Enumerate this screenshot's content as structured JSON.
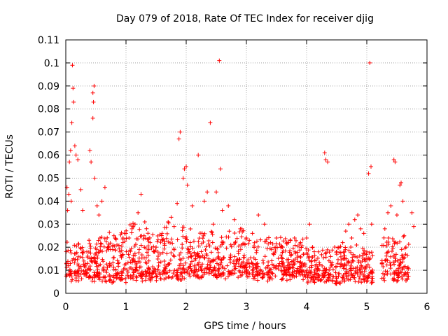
{
  "chart_data": {
    "type": "scatter",
    "title": "Day 079 of 2018, Rate Of TEC Index for receiver djig",
    "xlabel": "GPS time / hours",
    "ylabel": "ROTI / TECUs",
    "xlim": [
      0,
      6
    ],
    "ylim": [
      0,
      0.11
    ],
    "x_ticks": [
      0,
      1,
      2,
      3,
      4,
      5,
      6
    ],
    "x_tick_labels": [
      "0",
      "1",
      "2",
      "3",
      "4",
      "5",
      "6"
    ],
    "y_ticks": [
      0,
      0.01,
      0.02,
      0.03,
      0.04,
      0.05,
      0.06,
      0.07,
      0.08,
      0.09,
      0.1,
      0.11
    ],
    "y_tick_labels": [
      "0",
      "0.01",
      "0.02",
      "0.03",
      "0.04",
      "0.05",
      "0.06",
      "0.07",
      "0.08",
      "0.09",
      "0.1",
      "0.11"
    ],
    "grid": true,
    "marker": "+",
    "marker_color": "#ff0000",
    "series": [
      {
        "name": "ROTI",
        "points": [
          [
            0.02,
            0.046
          ],
          [
            0.03,
            0.036
          ],
          [
            0.05,
            0.043
          ],
          [
            0.06,
            0.057
          ],
          [
            0.08,
            0.062
          ],
          [
            0.09,
            0.04
          ],
          [
            0.1,
            0.074
          ],
          [
            0.11,
            0.099
          ],
          [
            0.12,
            0.089
          ],
          [
            0.13,
            0.083
          ],
          [
            0.15,
            0.064
          ],
          [
            0.17,
            0.06
          ],
          [
            0.2,
            0.058
          ],
          [
            0.25,
            0.045
          ],
          [
            0.28,
            0.036
          ],
          [
            0.4,
            0.062
          ],
          [
            0.42,
            0.057
          ],
          [
            0.45,
            0.087
          ],
          [
            0.46,
            0.083
          ],
          [
            0.47,
            0.09
          ],
          [
            0.45,
            0.076
          ],
          [
            0.48,
            0.05
          ],
          [
            0.52,
            0.038
          ],
          [
            0.55,
            0.034
          ],
          [
            0.6,
            0.04
          ],
          [
            0.65,
            0.046
          ],
          [
            0.3,
            0.014
          ],
          [
            0.35,
            0.018
          ],
          [
            0.55,
            0.012
          ],
          [
            0.7,
            0.02
          ],
          [
            0.8,
            0.025
          ],
          [
            0.85,
            0.021
          ],
          [
            0.9,
            0.018
          ],
          [
            0.95,
            0.022
          ],
          [
            1.0,
            0.026
          ],
          [
            1.05,
            0.024
          ],
          [
            1.1,
            0.028
          ],
          [
            1.15,
            0.03
          ],
          [
            1.2,
            0.035
          ],
          [
            1.25,
            0.043
          ],
          [
            1.3,
            0.025
          ],
          [
            1.4,
            0.022
          ],
          [
            1.5,
            0.02
          ],
          [
            1.6,
            0.026
          ],
          [
            1.7,
            0.031
          ],
          [
            1.75,
            0.033
          ],
          [
            1.8,
            0.029
          ],
          [
            1.85,
            0.039
          ],
          [
            1.88,
            0.067
          ],
          [
            1.9,
            0.07
          ],
          [
            1.95,
            0.05
          ],
          [
            1.97,
            0.054
          ],
          [
            2.0,
            0.055
          ],
          [
            2.02,
            0.047
          ],
          [
            2.1,
            0.038
          ],
          [
            2.2,
            0.06
          ],
          [
            2.3,
            0.04
          ],
          [
            2.35,
            0.044
          ],
          [
            2.4,
            0.074
          ],
          [
            2.45,
            0.03
          ],
          [
            2.5,
            0.044
          ],
          [
            2.55,
            0.101
          ],
          [
            2.57,
            0.054
          ],
          [
            2.6,
            0.036
          ],
          [
            2.7,
            0.038
          ],
          [
            2.8,
            0.032
          ],
          [
            2.9,
            0.028
          ],
          [
            3.0,
            0.024
          ],
          [
            3.1,
            0.026
          ],
          [
            3.2,
            0.034
          ],
          [
            3.3,
            0.03
          ],
          [
            3.4,
            0.022
          ],
          [
            3.5,
            0.024
          ],
          [
            3.6,
            0.02
          ],
          [
            3.7,
            0.022
          ],
          [
            3.8,
            0.024
          ],
          [
            3.9,
            0.022
          ],
          [
            4.0,
            0.024
          ],
          [
            4.05,
            0.03
          ],
          [
            4.1,
            0.02
          ],
          [
            4.2,
            0.018
          ],
          [
            4.3,
            0.061
          ],
          [
            4.32,
            0.058
          ],
          [
            4.35,
            0.057
          ],
          [
            4.4,
            0.016
          ],
          [
            4.5,
            0.018
          ],
          [
            4.6,
            0.022
          ],
          [
            4.65,
            0.027
          ],
          [
            4.7,
            0.03
          ],
          [
            4.75,
            0.024
          ],
          [
            4.8,
            0.032
          ],
          [
            4.85,
            0.034
          ],
          [
            4.9,
            0.028
          ],
          [
            4.95,
            0.026
          ],
          [
            5.0,
            0.018
          ],
          [
            5.03,
            0.052
          ],
          [
            5.05,
            0.1
          ],
          [
            5.07,
            0.055
          ],
          [
            5.08,
            0.03
          ],
          [
            5.3,
            0.028
          ],
          [
            5.35,
            0.035
          ],
          [
            5.4,
            0.038
          ],
          [
            5.45,
            0.058
          ],
          [
            5.47,
            0.057
          ],
          [
            5.5,
            0.034
          ],
          [
            5.55,
            0.047
          ],
          [
            5.57,
            0.048
          ],
          [
            5.6,
            0.04
          ],
          [
            5.62,
            0.025
          ],
          [
            5.65,
            0.02
          ],
          [
            5.75,
            0.035
          ],
          [
            5.78,
            0.029
          ]
        ],
        "dense_bands": [
          {
            "x_start": 0.0,
            "x_end": 0.55,
            "y_low": 0.005,
            "y_high": 0.02
          },
          {
            "x_start": 0.55,
            "x_end": 1.0,
            "y_low": 0.004,
            "y_high": 0.024
          },
          {
            "x_start": 1.0,
            "x_end": 2.0,
            "y_low": 0.005,
            "y_high": 0.028
          },
          {
            "x_start": 2.0,
            "x_end": 3.0,
            "y_low": 0.006,
            "y_high": 0.025
          },
          {
            "x_start": 3.0,
            "x_end": 4.0,
            "y_low": 0.005,
            "y_high": 0.022
          },
          {
            "x_start": 4.0,
            "x_end": 5.1,
            "y_low": 0.004,
            "y_high": 0.018
          },
          {
            "x_start": 5.25,
            "x_end": 5.7,
            "y_low": 0.005,
            "y_high": 0.022
          }
        ]
      }
    ]
  }
}
